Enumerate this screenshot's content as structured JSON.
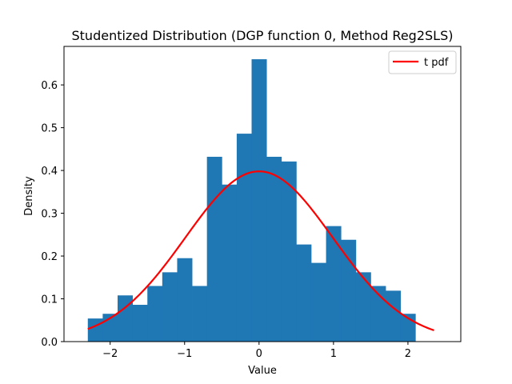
{
  "chart_data": {
    "type": "bar",
    "title": "Studentized Distribution (DGP function 0, Method Reg2SLS)",
    "xlabel": "Value",
    "ylabel": "Density",
    "xlim": [
      -2.62,
      2.71
    ],
    "ylim": [
      0,
      0.69
    ],
    "x_ticks": [
      -2,
      -1,
      0,
      1,
      2
    ],
    "x_tick_labels": [
      "−2",
      "−1",
      "0",
      "1",
      "2"
    ],
    "y_ticks": [
      0.0,
      0.1,
      0.2,
      0.3,
      0.4,
      0.5,
      0.6
    ],
    "y_tick_labels": [
      "0.0",
      "0.1",
      "0.2",
      "0.3",
      "0.4",
      "0.5",
      "0.6"
    ],
    "grid": false,
    "legend_position": "top-right",
    "histogram": {
      "name": "",
      "color": "#1f77b4",
      "bin_edges": [
        -2.3,
        -2.1,
        -1.9,
        -1.7,
        -1.5,
        -1.3,
        -1.1,
        -0.9,
        -0.7,
        -0.5,
        -0.3,
        -0.1,
        0.1,
        0.3,
        0.5,
        0.7,
        0.9,
        1.1,
        1.3,
        1.5,
        1.7,
        1.9,
        2.1
      ],
      "density": [
        0.054,
        0.065,
        0.108,
        0.086,
        0.13,
        0.162,
        0.195,
        0.13,
        0.432,
        0.367,
        0.486,
        0.66,
        0.432,
        0.421,
        0.227,
        0.184,
        0.27,
        0.238,
        0.162,
        0.13,
        0.119,
        0.065
      ]
    },
    "series": [
      {
        "name": "t pdf",
        "type": "line",
        "color": "#ff0000",
        "distribution": "t",
        "x_range": [
          -2.3,
          2.35
        ],
        "y_peak": 0.399
      }
    ]
  }
}
